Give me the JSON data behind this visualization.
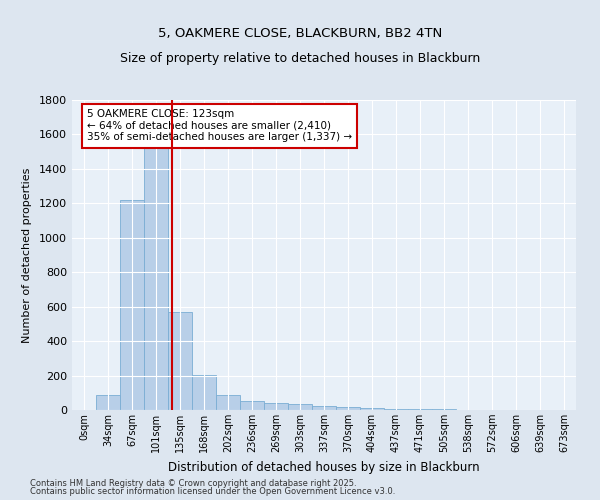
{
  "title1": "5, OAKMERE CLOSE, BLACKBURN, BB2 4TN",
  "title2": "Size of property relative to detached houses in Blackburn",
  "xlabel": "Distribution of detached houses by size in Blackburn",
  "ylabel": "Number of detached properties",
  "categories": [
    "0sqm",
    "34sqm",
    "67sqm",
    "101sqm",
    "135sqm",
    "168sqm",
    "202sqm",
    "236sqm",
    "269sqm",
    "303sqm",
    "337sqm",
    "370sqm",
    "404sqm",
    "437sqm",
    "471sqm",
    "505sqm",
    "538sqm",
    "572sqm",
    "606sqm",
    "639sqm",
    "673sqm"
  ],
  "values": [
    0,
    90,
    1220,
    1550,
    570,
    205,
    90,
    50,
    40,
    35,
    25,
    20,
    12,
    8,
    5,
    3,
    2,
    1,
    1,
    0,
    0
  ],
  "bar_color": "#b8cfe8",
  "bar_edge_color": "#7aadd4",
  "vline_x": 3.67,
  "vline_color": "#cc0000",
  "annotation_text": "5 OAKMERE CLOSE: 123sqm\n← 64% of detached houses are smaller (2,410)\n35% of semi-detached houses are larger (1,337) →",
  "annotation_box_color": "white",
  "annotation_box_edge": "#cc0000",
  "ylim": [
    0,
    1800
  ],
  "yticks": [
    0,
    200,
    400,
    600,
    800,
    1000,
    1200,
    1400,
    1600,
    1800
  ],
  "footnote1": "Contains HM Land Registry data © Crown copyright and database right 2025.",
  "footnote2": "Contains public sector information licensed under the Open Government Licence v3.0.",
  "bg_color": "#dde6f0",
  "plot_bg_color": "#e8f0f8"
}
